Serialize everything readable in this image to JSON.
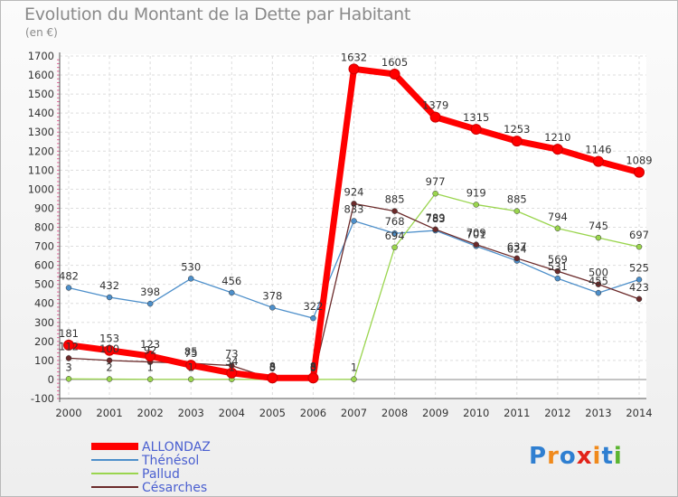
{
  "title": "Evolution du Montant de la Dette par Habitant",
  "subtitle": "(en €)",
  "logo_text": "Proxiti",
  "chart_data": {
    "type": "line",
    "title": "Evolution du Montant de la Dette par Habitant",
    "ylabel": "(en €)",
    "ylim": [
      -100,
      1700
    ],
    "ytick_step": 100,
    "grid": true,
    "legend_position": "bottom-left",
    "x": [
      2000,
      2001,
      2002,
      2003,
      2004,
      2005,
      2006,
      2007,
      2008,
      2009,
      2010,
      2011,
      2012,
      2013,
      2014
    ],
    "series": [
      {
        "name": "Thénésol",
        "color": "#4d8fca",
        "values": [
          482,
          432,
          398,
          530,
          456,
          378,
          322,
          833,
          768,
          783,
          701,
          624,
          531,
          455,
          525
        ]
      },
      {
        "name": "Pallud",
        "color": "#9ad54e",
        "values": [
          3,
          2,
          1,
          1,
          1,
          0,
          0,
          1,
          694,
          977,
          919,
          885,
          794,
          745,
          697
        ]
      },
      {
        "name": "Césarches",
        "color": "#6b2a2a",
        "values": [
          112,
          100,
          92,
          85,
          73,
          3,
          3,
          924,
          885,
          789,
          709,
          637,
          569,
          500,
          423
        ]
      },
      {
        "name": "ALLONDAZ",
        "color": "#ff0000",
        "values": [
          181,
          153,
          123,
          75,
          34,
          8,
          8,
          1632,
          1605,
          1379,
          1315,
          1253,
          1210,
          1146,
          1089
        ]
      }
    ]
  }
}
